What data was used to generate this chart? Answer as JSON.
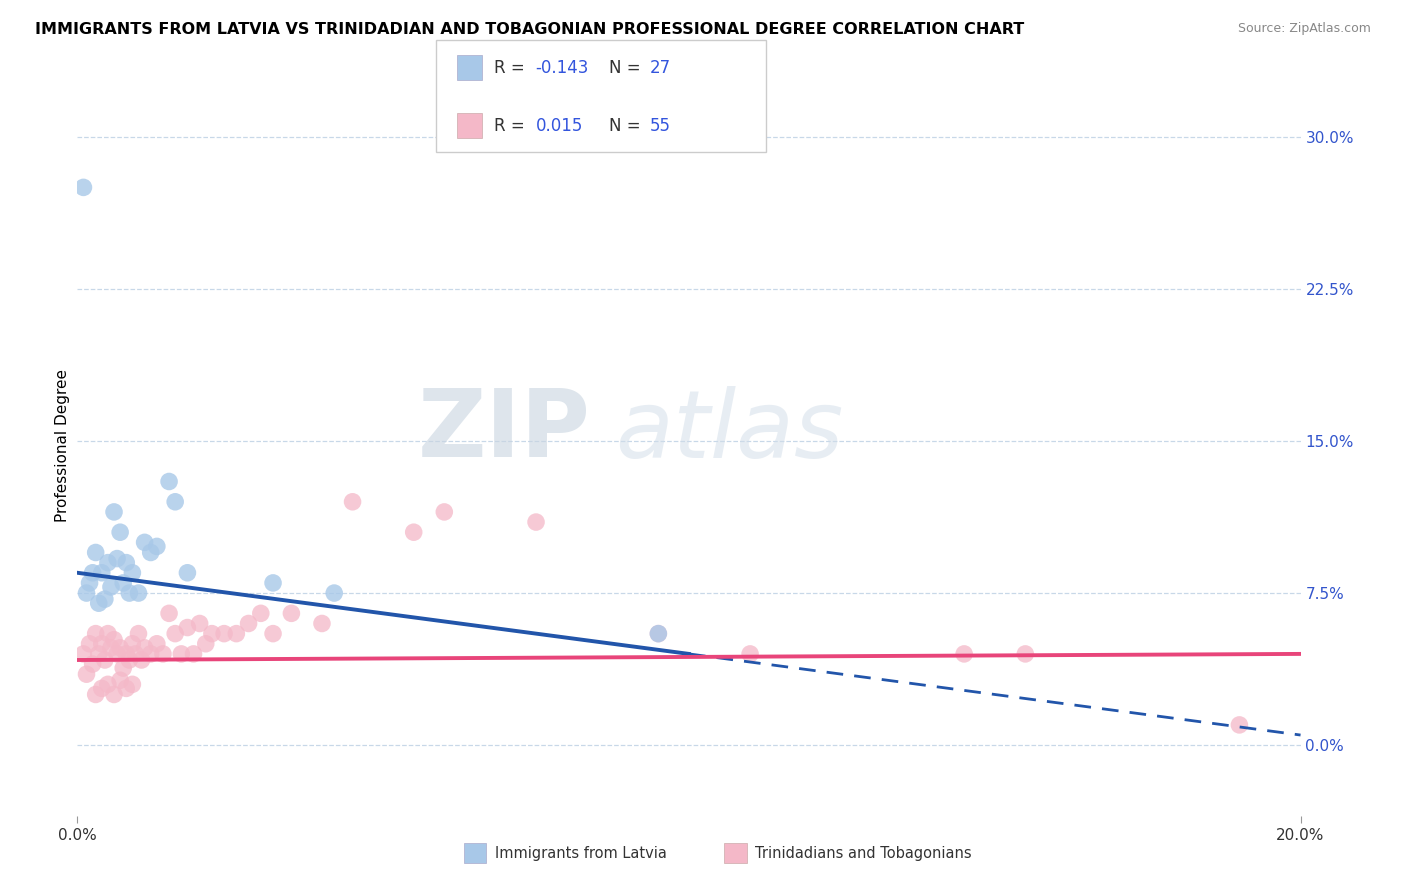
{
  "title": "IMMIGRANTS FROM LATVIA VS TRINIDADIAN AND TOBAGONIAN PROFESSIONAL DEGREE CORRELATION CHART",
  "source": "Source: ZipAtlas.com",
  "ylabel": "Professional Degree",
  "ytick_labels": [
    "0.0%",
    "7.5%",
    "15.0%",
    "22.5%",
    "30.0%"
  ],
  "ytick_values": [
    0.0,
    7.5,
    15.0,
    22.5,
    30.0
  ],
  "xlim": [
    0.0,
    20.0
  ],
  "ylim": [
    -3.5,
    33.0
  ],
  "legend_label1": "Immigrants from Latvia",
  "legend_label2": "Trinidadians and Tobagonians",
  "R1": -0.143,
  "N1": 27,
  "R2": 0.015,
  "N2": 55,
  "color_blue": "#a8c8e8",
  "color_pink": "#f4b8c8",
  "color_blue_line": "#2255aa",
  "color_pink_line": "#e8457a",
  "color_r_value": "#3355dd",
  "watermark_zip": "ZIP",
  "watermark_atlas": "atlas",
  "blue_scatter_x": [
    0.15,
    0.2,
    0.25,
    0.3,
    0.35,
    0.4,
    0.45,
    0.5,
    0.55,
    0.6,
    0.65,
    0.7,
    0.75,
    0.8,
    0.85,
    0.9,
    1.0,
    1.1,
    1.2,
    1.3,
    1.5,
    1.6,
    1.8,
    3.2,
    4.2,
    9.5,
    0.1
  ],
  "blue_scatter_y": [
    7.5,
    8.0,
    8.5,
    9.5,
    7.0,
    8.5,
    7.2,
    9.0,
    7.8,
    11.5,
    9.2,
    10.5,
    8.0,
    9.0,
    7.5,
    8.5,
    7.5,
    10.0,
    9.5,
    9.8,
    13.0,
    12.0,
    8.5,
    8.0,
    7.5,
    5.5,
    27.5
  ],
  "pink_scatter_x": [
    0.1,
    0.15,
    0.2,
    0.25,
    0.3,
    0.35,
    0.4,
    0.45,
    0.5,
    0.55,
    0.6,
    0.65,
    0.7,
    0.75,
    0.8,
    0.85,
    0.9,
    0.95,
    1.0,
    1.05,
    1.1,
    1.2,
    1.3,
    1.4,
    1.5,
    1.6,
    1.7,
    1.8,
    1.9,
    2.0,
    2.1,
    2.2,
    2.4,
    2.6,
    2.8,
    3.0,
    3.2,
    3.5,
    4.0,
    4.5,
    5.5,
    6.0,
    7.5,
    9.5,
    11.0,
    14.5,
    15.5,
    19.0,
    0.3,
    0.4,
    0.5,
    0.6,
    0.7,
    0.8,
    0.9
  ],
  "pink_scatter_y": [
    4.5,
    3.5,
    5.0,
    4.0,
    5.5,
    4.5,
    5.0,
    4.2,
    5.5,
    4.8,
    5.2,
    4.5,
    4.8,
    3.8,
    4.5,
    4.2,
    5.0,
    4.5,
    5.5,
    4.2,
    4.8,
    4.5,
    5.0,
    4.5,
    6.5,
    5.5,
    4.5,
    5.8,
    4.5,
    6.0,
    5.0,
    5.5,
    5.5,
    5.5,
    6.0,
    6.5,
    5.5,
    6.5,
    6.0,
    12.0,
    10.5,
    11.5,
    11.0,
    5.5,
    4.5,
    4.5,
    4.5,
    1.0,
    2.5,
    2.8,
    3.0,
    2.5,
    3.2,
    2.8,
    3.0
  ],
  "blue_line_x0": 0.0,
  "blue_line_y0": 8.5,
  "blue_line_x1": 10.0,
  "blue_line_y1": 4.5,
  "blue_dash_x0": 10.0,
  "blue_dash_y0": 4.5,
  "blue_dash_x1": 20.0,
  "blue_dash_y1": 0.5,
  "pink_line_x0": 0.0,
  "pink_line_y0": 4.2,
  "pink_line_x1": 20.0,
  "pink_line_y1": 4.5
}
